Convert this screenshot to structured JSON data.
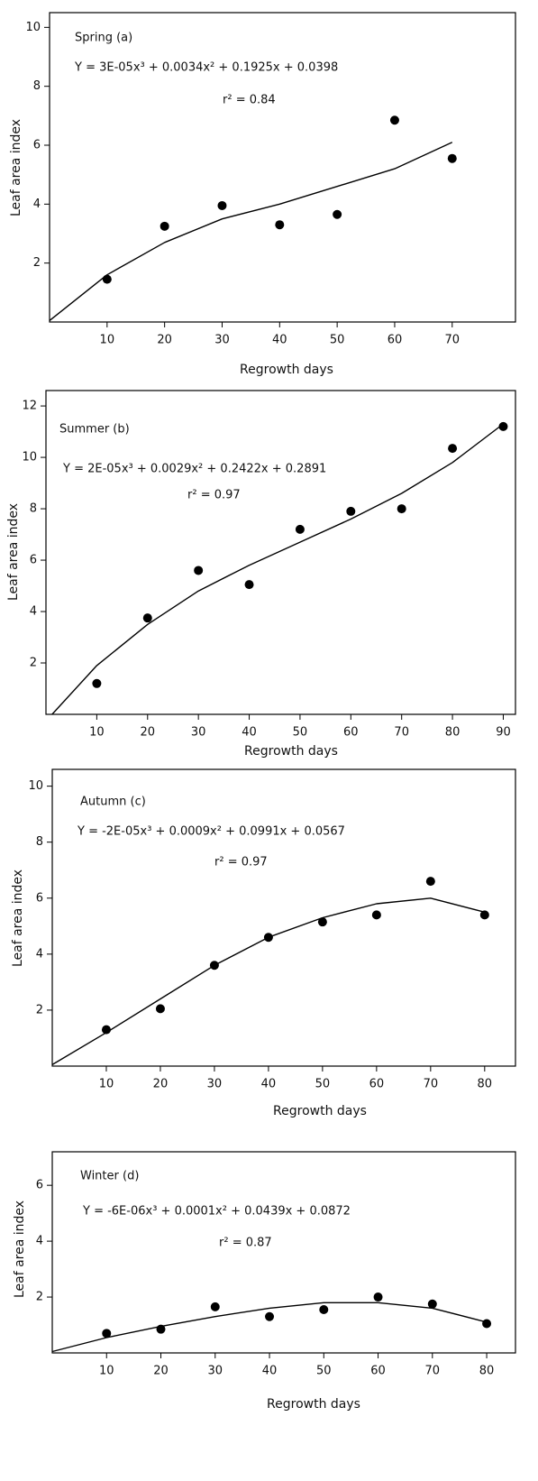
{
  "chart_data": [
    {
      "type": "scatter",
      "title": "Spring (a)",
      "equation": "Y = 3E-05x³ + 0.0034x² + 0.1925x + 0.0398",
      "r2": "r² = 0.84",
      "x_label": "Regrowth days",
      "y_label": "Leaf area index",
      "color": "#000000",
      "x": [
        10,
        20,
        30,
        40,
        50,
        60,
        70
      ],
      "values": [
        1.45,
        3.25,
        3.95,
        3.3,
        3.65,
        6.85,
        5.55
      ],
      "fit": {
        "x": [
          0,
          10,
          20,
          30,
          40,
          50,
          60,
          70
        ],
        "values": [
          0.05,
          1.6,
          2.7,
          3.5,
          4.0,
          4.6,
          5.2,
          6.1
        ]
      },
      "xlim": [
        0,
        81
      ],
      "ylim": [
        0,
        10.5
      ],
      "xticks": [
        10,
        20,
        30,
        40,
        50,
        60,
        70
      ],
      "yticks": [
        2,
        4,
        6,
        8,
        10
      ]
    },
    {
      "type": "scatter",
      "title": "Summer (b)",
      "equation": "Y = 2E-05x³ + 0.0029x² + 0.2422x + 0.2891",
      "r2": "r² = 0.97",
      "x_label": "Regrowth days",
      "y_label": "Leaf area index",
      "color": "#000000",
      "x": [
        10,
        20,
        30,
        40,
        50,
        60,
        70,
        80,
        90
      ],
      "values": [
        1.2,
        3.75,
        5.6,
        5.05,
        7.2,
        7.9,
        8.0,
        10.35,
        11.2
      ],
      "fit": {
        "x": [
          1.2,
          10,
          20,
          30,
          40,
          50,
          60,
          70,
          80,
          90
        ],
        "values": [
          0,
          1.9,
          3.5,
          4.8,
          5.8,
          6.7,
          7.6,
          8.6,
          9.8,
          11.3
        ]
      },
      "xlim": [
        0,
        92.4
      ],
      "ylim": [
        0,
        12.6
      ],
      "xticks": [
        10,
        20,
        30,
        40,
        50,
        60,
        70,
        80,
        90
      ],
      "yticks": [
        2,
        4,
        6,
        8,
        10,
        12
      ]
    },
    {
      "type": "scatter",
      "title": "Autumn (c)",
      "equation": "Y = -2E-05x³ + 0.0009x² + 0.0991x + 0.0567",
      "r2": "r² = 0.97",
      "x_label": "Regrowth days",
      "y_label": "Leaf area index",
      "color": "#000000",
      "x": [
        10,
        20,
        30,
        40,
        50,
        60,
        70,
        80
      ],
      "values": [
        1.3,
        2.05,
        3.6,
        4.6,
        5.15,
        5.4,
        6.6,
        5.4
      ],
      "fit": {
        "x": [
          0,
          10,
          20,
          30,
          40,
          50,
          60,
          70,
          80
        ],
        "values": [
          0.05,
          1.2,
          2.4,
          3.6,
          4.6,
          5.3,
          5.8,
          6.0,
          5.5
        ]
      },
      "xlim": [
        0,
        85.7
      ],
      "ylim": [
        0,
        10.6
      ],
      "xticks": [
        10,
        20,
        30,
        40,
        50,
        60,
        70,
        80
      ],
      "yticks": [
        2,
        4,
        6,
        8,
        10
      ]
    },
    {
      "type": "scatter",
      "title": "Winter (d)",
      "equation": "Y = -6E-06x³ + 0.0001x² + 0.0439x + 0.0872",
      "r2": "r² = 0.87",
      "x_label": "Regrowth days",
      "y_label": "Leaf area index",
      "color": "#000000",
      "x": [
        10,
        20,
        30,
        40,
        50,
        60,
        70,
        80
      ],
      "values": [
        0.7,
        0.85,
        1.65,
        1.3,
        1.55,
        2.0,
        1.75,
        1.05
      ],
      "fit": {
        "x": [
          0,
          10,
          20,
          30,
          40,
          50,
          60,
          70,
          80
        ],
        "values": [
          0.05,
          0.55,
          0.95,
          1.3,
          1.6,
          1.8,
          1.8,
          1.6,
          1.1
        ]
      },
      "xlim": [
        0,
        85.3
      ],
      "ylim": [
        0,
        7.2
      ],
      "xticks": [
        10,
        20,
        30,
        40,
        50,
        60,
        70,
        80
      ],
      "yticks": [
        2,
        4,
        6
      ]
    }
  ]
}
